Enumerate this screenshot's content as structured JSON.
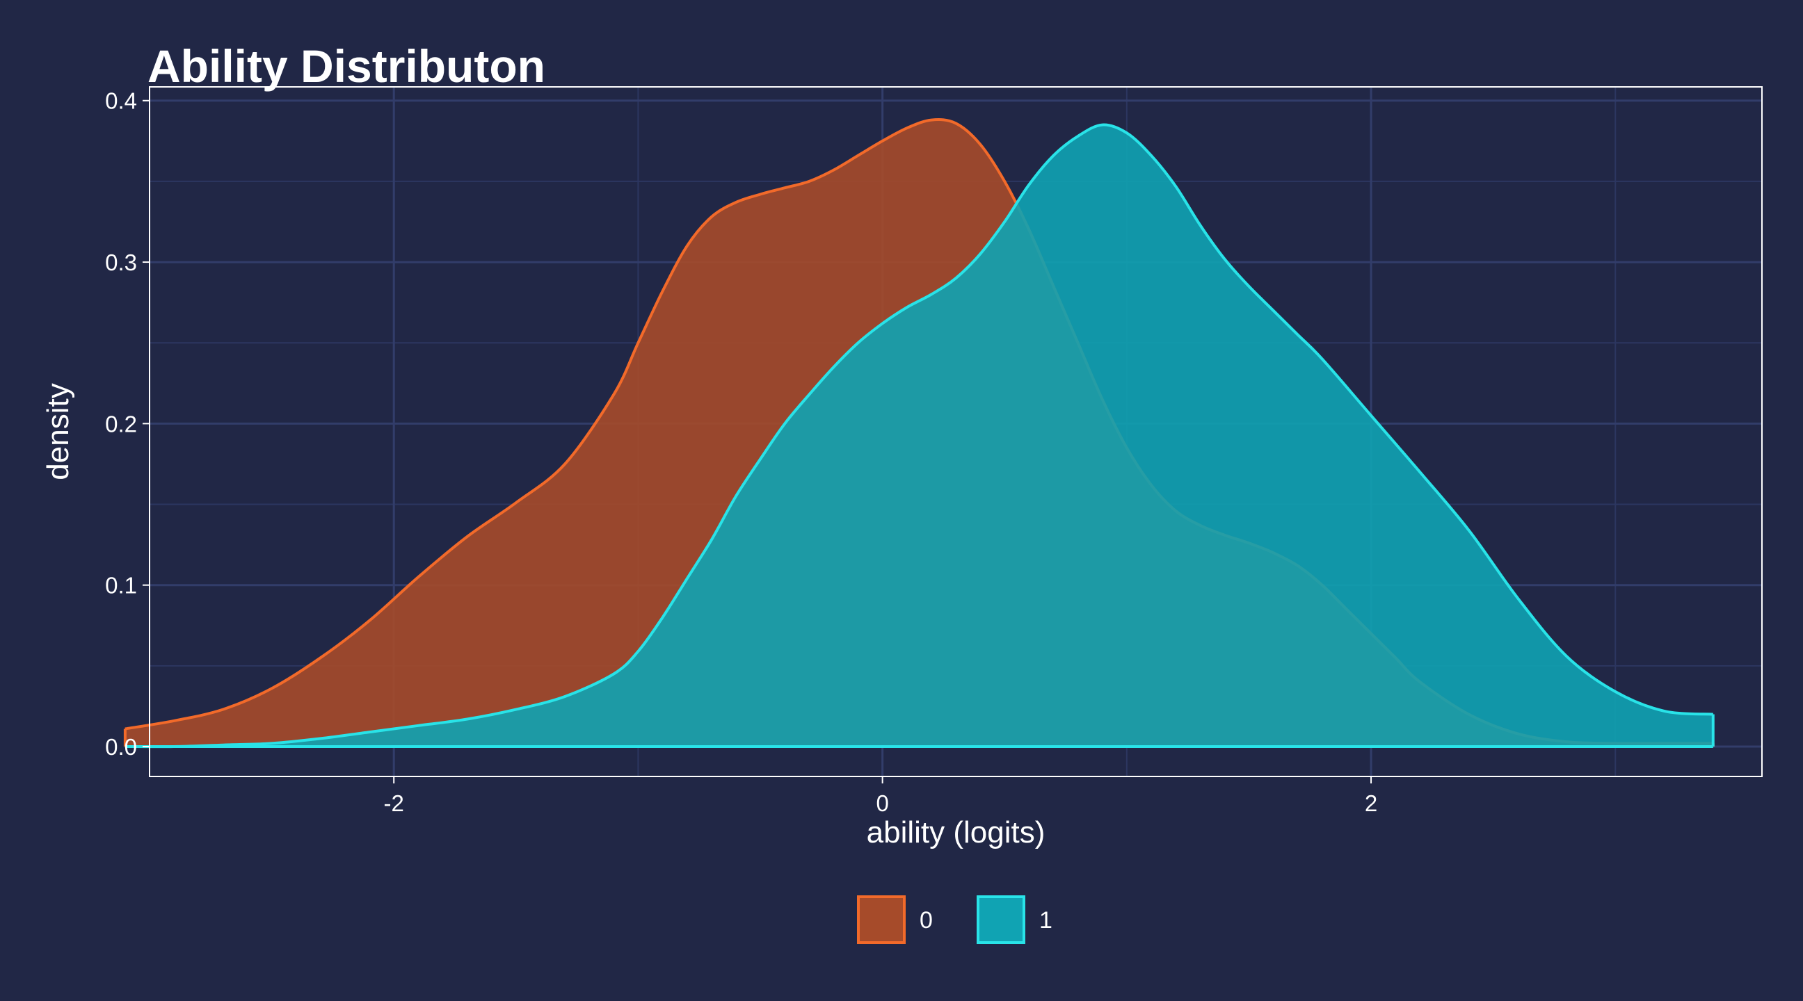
{
  "chart_data": {
    "type": "area",
    "title": "Ability Distributon",
    "xlabel": "ability (logits)",
    "ylabel": "density",
    "xlim": [
      -3.0,
      3.6
    ],
    "ylim": [
      -0.0185,
      0.4085
    ],
    "xticks": [
      -2,
      0,
      2
    ],
    "xtick_labels": [
      "-2",
      "0",
      "2"
    ],
    "yticks": [
      0.0,
      0.1,
      0.2,
      0.3,
      0.4
    ],
    "ytick_labels": [
      "0.0",
      "0.1",
      "0.2",
      "0.3",
      "0.4"
    ],
    "grid": true,
    "legend_position": "bottom",
    "series": [
      {
        "name": "0",
        "fill": "#a64b2a",
        "line": "#f26a2a",
        "x": [
          -3.1,
          -2.9,
          -2.7,
          -2.5,
          -2.3,
          -2.1,
          -1.9,
          -1.7,
          -1.5,
          -1.3,
          -1.1,
          -1.0,
          -0.9,
          -0.8,
          -0.7,
          -0.6,
          -0.5,
          -0.4,
          -0.3,
          -0.2,
          -0.1,
          0.0,
          0.1,
          0.2,
          0.3,
          0.4,
          0.5,
          0.6,
          0.7,
          0.8,
          0.9,
          1.0,
          1.1,
          1.2,
          1.3,
          1.4,
          1.5,
          1.6,
          1.7,
          1.8,
          1.9,
          2.0,
          2.1,
          2.2,
          2.4,
          2.6,
          2.8,
          3.0,
          3.2,
          3.4
        ],
        "y": [
          0.011,
          0.016,
          0.023,
          0.036,
          0.055,
          0.078,
          0.105,
          0.13,
          0.151,
          0.175,
          0.218,
          0.25,
          0.282,
          0.31,
          0.328,
          0.337,
          0.342,
          0.346,
          0.35,
          0.357,
          0.366,
          0.375,
          0.383,
          0.388,
          0.386,
          0.373,
          0.35,
          0.32,
          0.285,
          0.25,
          0.215,
          0.185,
          0.162,
          0.146,
          0.137,
          0.131,
          0.126,
          0.12,
          0.112,
          0.1,
          0.085,
          0.07,
          0.055,
          0.04,
          0.02,
          0.008,
          0.003,
          0.002,
          0.002,
          0.002
        ]
      },
      {
        "name": "1",
        "fill": "#10a3b3",
        "line": "#29e3e8",
        "x": [
          -3.1,
          -2.9,
          -2.7,
          -2.5,
          -2.3,
          -2.1,
          -1.9,
          -1.7,
          -1.5,
          -1.3,
          -1.1,
          -1.0,
          -0.9,
          -0.8,
          -0.7,
          -0.6,
          -0.5,
          -0.4,
          -0.3,
          -0.2,
          -0.1,
          0.0,
          0.1,
          0.2,
          0.3,
          0.4,
          0.5,
          0.6,
          0.7,
          0.8,
          0.9,
          1.0,
          1.1,
          1.2,
          1.3,
          1.4,
          1.5,
          1.6,
          1.7,
          1.8,
          2.0,
          2.2,
          2.4,
          2.6,
          2.8,
          3.0,
          3.2,
          3.4
        ],
        "y": [
          0.0,
          0.0,
          0.001,
          0.002,
          0.005,
          0.009,
          0.013,
          0.017,
          0.023,
          0.031,
          0.045,
          0.059,
          0.08,
          0.104,
          0.128,
          0.155,
          0.178,
          0.2,
          0.218,
          0.235,
          0.25,
          0.262,
          0.272,
          0.28,
          0.29,
          0.305,
          0.325,
          0.348,
          0.366,
          0.378,
          0.385,
          0.38,
          0.366,
          0.347,
          0.323,
          0.302,
          0.285,
          0.27,
          0.255,
          0.24,
          0.205,
          0.17,
          0.134,
          0.092,
          0.056,
          0.034,
          0.022,
          0.02
        ]
      }
    ]
  }
}
